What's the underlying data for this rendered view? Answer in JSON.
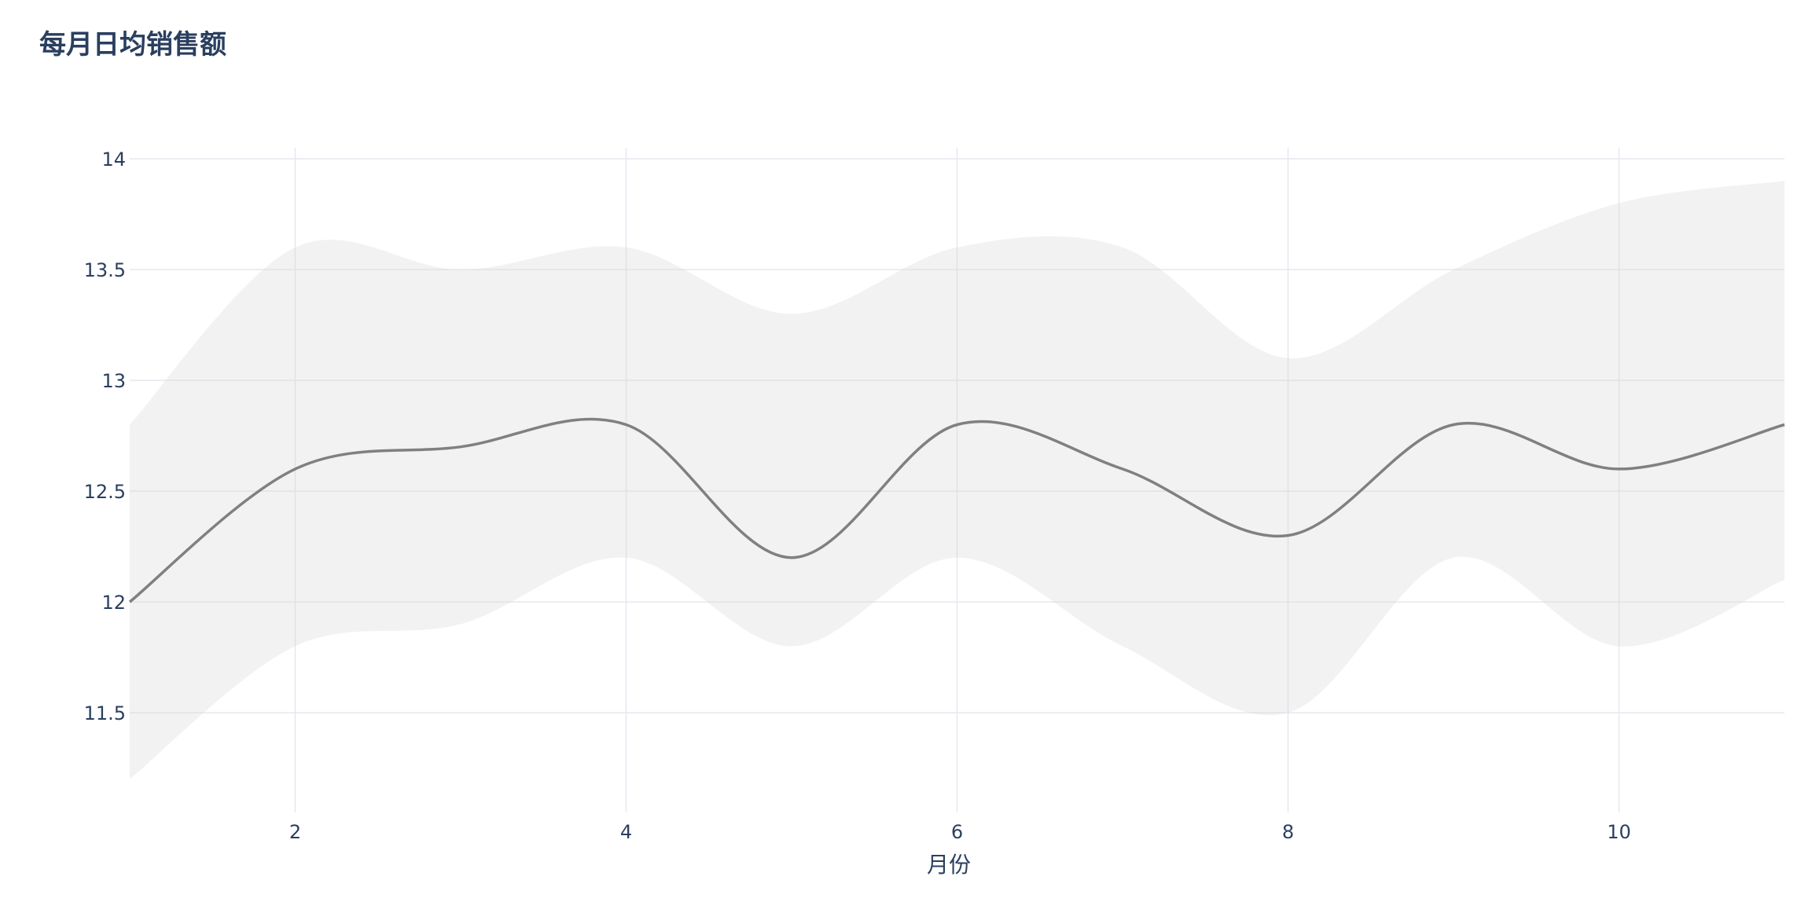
{
  "chart_data": {
    "type": "line",
    "title": "每月日均销售额",
    "xlabel": "月份",
    "ylabel": "",
    "xlim": [
      1,
      11
    ],
    "ylim": [
      11.05,
      14.05
    ],
    "x_ticks": [
      2,
      4,
      6,
      8,
      10
    ],
    "y_ticks": [
      11.5,
      12,
      12.5,
      13,
      13.5,
      14
    ],
    "x_tick_labels": [
      "2",
      "4",
      "6",
      "8",
      "10"
    ],
    "y_tick_labels": [
      "11.5",
      "12",
      "12.5",
      "13",
      "13.5",
      "14"
    ],
    "x": [
      1,
      2,
      3,
      4,
      5,
      6,
      7,
      8,
      9,
      10,
      11
    ],
    "series": [
      {
        "values": [
          12.0,
          12.6,
          12.7,
          12.8,
          12.2,
          12.8,
          12.6,
          12.3,
          12.8,
          12.6,
          12.8
        ],
        "color": "#808080"
      }
    ],
    "band": {
      "upper": [
        12.8,
        13.6,
        13.5,
        13.6,
        13.3,
        13.6,
        13.6,
        13.1,
        13.5,
        13.8,
        13.9
      ],
      "lower": [
        11.2,
        11.8,
        11.9,
        12.2,
        11.8,
        12.2,
        11.8,
        11.5,
        12.2,
        11.8,
        12.1
      ],
      "color": "#d3d3d3"
    },
    "grid": true,
    "legend": "none"
  }
}
